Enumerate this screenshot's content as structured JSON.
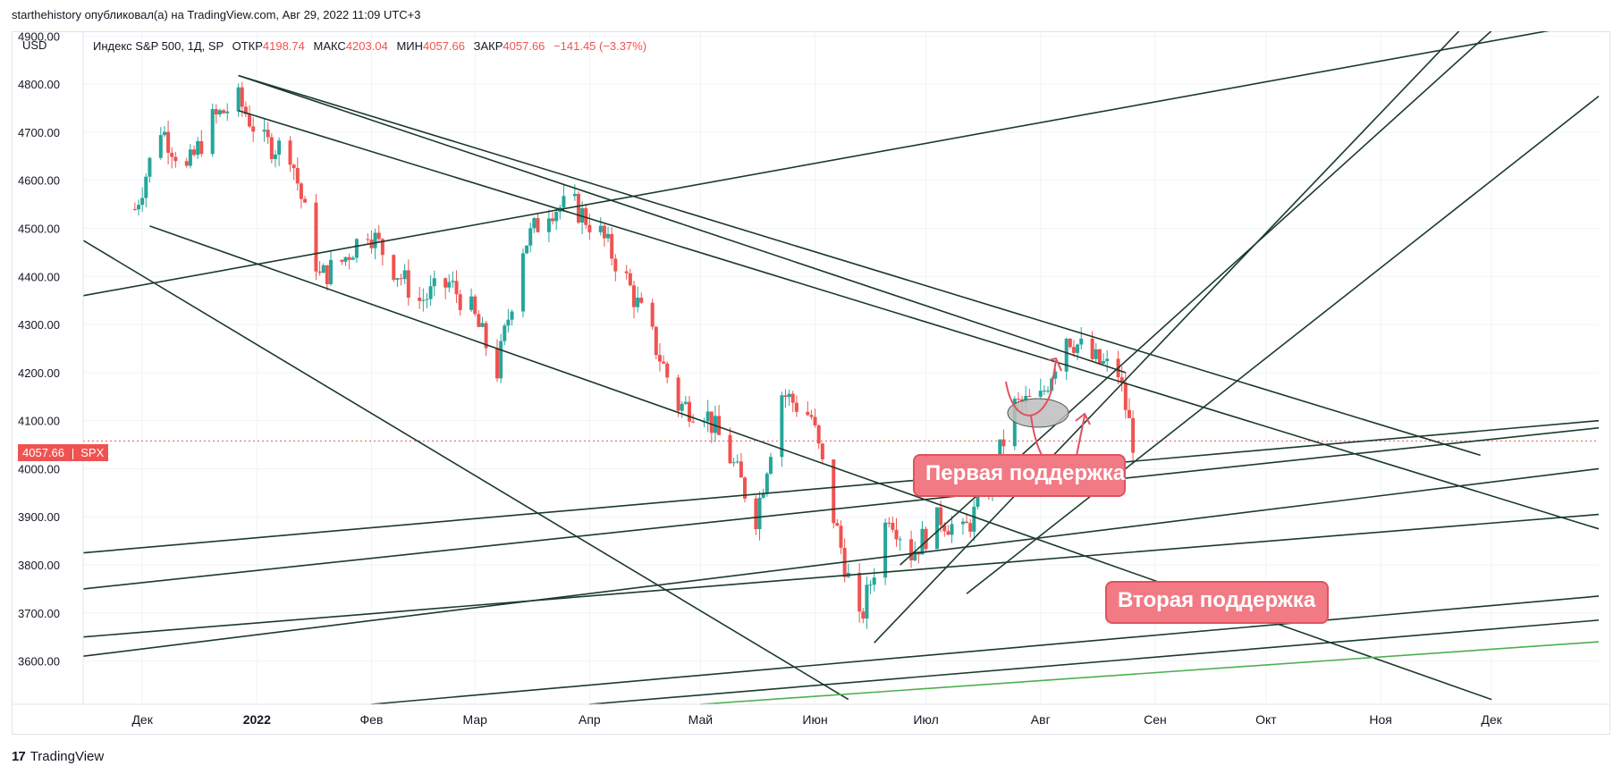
{
  "attribution": "starthehistory опубликовал(а) на TradingView.com, Авг 29, 2022 11:09 UTC+3",
  "currency": "USD",
  "legend": {
    "symbol": "Индекс S&P 500, 1Д, SP",
    "open_label": "ОТКР",
    "open": "4198.74",
    "high_label": "МАКС",
    "high": "4203.04",
    "low_label": "МИН",
    "low": "4057.66",
    "close_label": "ЗАКР",
    "close": "4057.66",
    "change": "−141.45 (−3.37%)"
  },
  "price_tag": {
    "value": "4057.66",
    "symbol": "SPX"
  },
  "callouts": {
    "first": "Первая поддержка",
    "second": "Вторая поддержка"
  },
  "brand": "TradingView",
  "colors": {
    "up": "#26a69a",
    "down": "#ef5350",
    "trendline": "#1b3a2c",
    "green_line": "#4caf50",
    "callout": "#f27a85"
  },
  "chart_data": {
    "type": "candlestick",
    "title": "Индекс S&P 500, 1Д, SP",
    "ylabel": "USD",
    "ylim": [
      3510,
      4910
    ],
    "y_ticks": [
      "4900.00",
      "4800.00",
      "4700.00",
      "4600.00",
      "4500.00",
      "4400.00",
      "4300.00",
      "4200.00",
      "4100.00",
      "4000.00",
      "3900.00",
      "3800.00",
      "3700.00",
      "3600.00"
    ],
    "x_ticks": [
      "Дек",
      "2022",
      "Фев",
      "Мар",
      "Апр",
      "Май",
      "Июн",
      "Июл",
      "Авг",
      "Сен",
      "Окт",
      "Ноя",
      "Дек"
    ],
    "last_price": 4057.66,
    "grid": true,
    "close_series": {
      "dates": [
        "2021-11-29",
        "2021-12-06",
        "2021-12-13",
        "2021-12-20",
        "2021-12-27",
        "2022-01-03",
        "2022-01-10",
        "2022-01-18",
        "2022-01-24",
        "2022-01-31",
        "2022-02-07",
        "2022-02-14",
        "2022-02-22",
        "2022-02-28",
        "2022-03-07",
        "2022-03-14",
        "2022-03-21",
        "2022-03-28",
        "2022-04-04",
        "2022-04-11",
        "2022-04-18",
        "2022-04-25",
        "2022-05-02",
        "2022-05-09",
        "2022-05-16",
        "2022-05-23",
        "2022-05-31",
        "2022-06-06",
        "2022-06-13",
        "2022-06-21",
        "2022-06-27",
        "2022-07-05",
        "2022-07-11",
        "2022-07-18",
        "2022-07-25",
        "2022-08-01",
        "2022-08-08",
        "2022-08-15",
        "2022-08-22",
        "2022-08-26"
      ],
      "values": [
        4540,
        4710,
        4620,
        4725,
        4766,
        4677,
        4662,
        4398,
        4431,
        4500,
        4418,
        4349,
        4385,
        4329,
        4204,
        4463,
        4543,
        4545,
        4488,
        4392,
        4272,
        4132,
        4123,
        4023,
        3901,
        4158,
        4108,
        3900,
        3675,
        3912,
        3825,
        3899,
        3863,
        3962,
        4130,
        4145,
        4280,
        4228,
        4199,
        4057.66
      ]
    },
    "trendlines": [
      {
        "from": [
          "2021-12-27",
          4818
        ],
        "to": [
          "2022-11-28",
          4028
        ]
      },
      {
        "from": [
          "2021-12-27",
          4818
        ],
        "to": [
          "2022-08-24",
          4200
        ]
      },
      {
        "from": [
          "2021-12-27",
          4745
        ],
        "to": [
          "2022-12-30",
          3875
        ]
      },
      {
        "from": [
          "2021-12-03",
          4505
        ],
        "to": [
          "2022-12-01",
          3520
        ]
      },
      {
        "from": [
          "2021-11-15",
          4475
        ],
        "to": [
          "2022-06-10",
          3520
        ]
      },
      {
        "from": [
          "2022-06-17",
          3638
        ],
        "to": [
          "2022-11-24",
          4925
        ]
      },
      {
        "from": [
          "2022-06-24",
          3800
        ],
        "to": [
          "2022-12-03",
          4925
        ]
      },
      {
        "from": [
          "2022-07-12",
          3740
        ],
        "to": [
          "2022-12-30",
          4775
        ]
      },
      {
        "from": [
          "2021-11-15",
          4360
        ],
        "to": [
          "2022-12-30",
          4930
        ]
      },
      {
        "from": [
          "2021-11-15",
          3825
        ],
        "to": [
          "2022-12-30",
          4100
        ]
      },
      {
        "from": [
          "2021-11-15",
          3750
        ],
        "to": [
          "2022-12-30",
          4085
        ]
      },
      {
        "from": [
          "2021-11-15",
          3610
        ],
        "to": [
          "2022-12-30",
          4000
        ]
      },
      {
        "from": [
          "2021-11-15",
          3650
        ],
        "to": [
          "2022-12-30",
          3905
        ]
      },
      {
        "from": [
          "2022-02-01",
          3510
        ],
        "to": [
          "2022-12-30",
          3735
        ]
      },
      {
        "from": [
          "2022-04-01",
          3510
        ],
        "to": [
          "2022-12-30",
          3685
        ]
      },
      {
        "from": [
          "2022-05-01",
          3510
        ],
        "to": [
          "2022-12-30",
          3640
        ]
      }
    ]
  }
}
